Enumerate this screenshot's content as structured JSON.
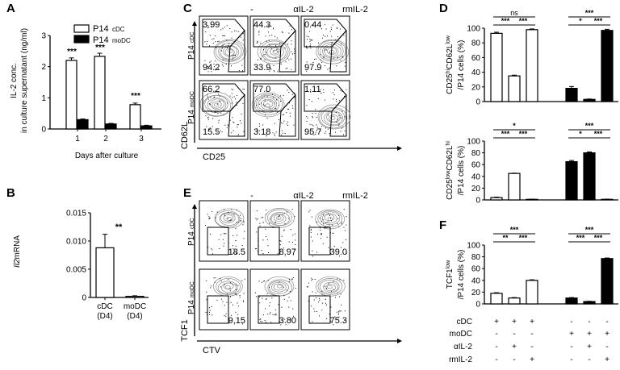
{
  "panel_letters": {
    "A": "A",
    "B": "B",
    "C": "C",
    "D": "D",
    "E": "E",
    "F": "F"
  },
  "chart_data": [
    {
      "type": "bar",
      "panel": "A",
      "ylabel_line1": "IL-2 conc.",
      "ylabel_line2": "in culture supernatant (ng/ml)",
      "xlabel": "Days after culture",
      "categories": [
        "1",
        "2",
        "3"
      ],
      "yticks": [
        "0",
        "1",
        "2",
        "3"
      ],
      "ylim": [
        0,
        3
      ],
      "legend": [
        {
          "name": "P14",
          "sub": "cDC"
        },
        {
          "name": "P14",
          "sub": "moDC"
        }
      ],
      "series": [
        {
          "name": "P14 cDC",
          "values": [
            2.2,
            2.33,
            0.78
          ],
          "errors": [
            0.08,
            0.1,
            0.05
          ],
          "fill": "#ffffff"
        },
        {
          "name": "P14 moDC",
          "values": [
            0.3,
            0.16,
            0.1
          ],
          "errors": [
            0.02,
            0.02,
            0.02
          ],
          "fill": "#000000"
        }
      ],
      "annotations": [
        "***",
        "***",
        "***"
      ]
    },
    {
      "type": "bar",
      "panel": "B",
      "ylabel_italic": "Il2",
      "ylabel_rest": "mRNA",
      "categories": [
        {
          "l1": "cDC",
          "l2": "(D4)"
        },
        {
          "l1": "moDC",
          "l2": "(D4)"
        }
      ],
      "yticks": [
        "0",
        "0.005",
        "0.010",
        "0.015"
      ],
      "ylim": [
        0,
        0.015
      ],
      "values": [
        0.0088,
        0.0002
      ],
      "errors": [
        0.0024,
        0.0001
      ],
      "annotation": "**"
    },
    {
      "type": "bar",
      "panel": "D-top",
      "ylabel_a": "CD25",
      "ylabel_a_sup": "hi",
      "ylabel_b": "CD62L",
      "ylabel_b_sup": "low",
      "ylabel_line2": "/P14 cells (%)",
      "yticks": [
        "0",
        "20",
        "40",
        "60",
        "80",
        "100"
      ],
      "ylim": [
        0,
        100
      ],
      "values": [
        93,
        35,
        98,
        18,
        3,
        97
      ],
      "errors": [
        1.5,
        1,
        1,
        2.5,
        0.5,
        1.5
      ],
      "fills": [
        "#ffffff",
        "#ffffff",
        "#ffffff",
        "#000000",
        "#000000",
        "#000000"
      ],
      "sig": [
        {
          "a": 0,
          "b": 2,
          "label": "ns",
          "level": 2
        },
        {
          "a": 0,
          "b": 1,
          "label": "***",
          "level": 1
        },
        {
          "a": 1,
          "b": 2,
          "label": "***",
          "level": 1
        },
        {
          "a": 3,
          "b": 5,
          "label": "***",
          "level": 2
        },
        {
          "a": 3,
          "b": 4,
          "label": "*",
          "level": 1
        },
        {
          "a": 4,
          "b": 5,
          "label": "***",
          "level": 1
        }
      ]
    },
    {
      "type": "bar",
      "panel": "D-bottom",
      "ylabel_a": "CD25",
      "ylabel_a_sup": "low",
      "ylabel_b": "CD62L",
      "ylabel_b_sup": "hi",
      "ylabel_line2": "/P14 cells (%)",
      "yticks": [
        "0",
        "20",
        "40",
        "60",
        "80",
        "100"
      ],
      "ylim": [
        0,
        100
      ],
      "values": [
        4,
        45,
        1,
        65,
        80,
        1
      ],
      "errors": [
        0.8,
        0.5,
        0.3,
        2,
        1.5,
        0.3
      ],
      "fills": [
        "#ffffff",
        "#ffffff",
        "#ffffff",
        "#000000",
        "#000000",
        "#000000"
      ],
      "sig": [
        {
          "a": 0,
          "b": 2,
          "label": "*",
          "level": 2
        },
        {
          "a": 0,
          "b": 1,
          "label": "***",
          "level": 1
        },
        {
          "a": 1,
          "b": 2,
          "label": "***",
          "level": 1
        },
        {
          "a": 3,
          "b": 5,
          "label": "***",
          "level": 2
        },
        {
          "a": 3,
          "b": 4,
          "label": "*",
          "level": 1
        },
        {
          "a": 4,
          "b": 5,
          "label": "***",
          "level": 1
        }
      ]
    },
    {
      "type": "bar",
      "panel": "F",
      "ylabel_a": "TCF1",
      "ylabel_a_sup": "low",
      "ylabel_line2": "/P14 cells (%)",
      "yticks": [
        "0",
        "20",
        "40",
        "60",
        "80",
        "100"
      ],
      "ylim": [
        0,
        100
      ],
      "values": [
        18,
        10,
        40,
        10,
        4,
        77
      ],
      "errors": [
        1,
        0.8,
        1,
        0.8,
        0.5,
        1
      ],
      "fills": [
        "#ffffff",
        "#ffffff",
        "#ffffff",
        "#000000",
        "#000000",
        "#000000"
      ],
      "sig": [
        {
          "a": 0,
          "b": 2,
          "label": "***",
          "level": 2
        },
        {
          "a": 0,
          "b": 1,
          "label": "**",
          "level": 1
        },
        {
          "a": 1,
          "b": 2,
          "label": "***",
          "level": 1
        },
        {
          "a": 3,
          "b": 5,
          "label": "***",
          "level": 2
        },
        {
          "a": 3,
          "b": 4,
          "label": "***",
          "level": 1
        },
        {
          "a": 4,
          "b": 5,
          "label": "***",
          "level": 1
        }
      ],
      "table_rows": [
        {
          "label": "cDC",
          "signs": [
            "+",
            "+",
            "+",
            "-",
            "-",
            "-"
          ]
        },
        {
          "label": "moDC",
          "signs": [
            "-",
            "-",
            "-",
            "+",
            "+",
            "+"
          ]
        },
        {
          "label": "αIL-2",
          "signs": [
            "-",
            "+",
            "-",
            "-",
            "+",
            "-"
          ]
        },
        {
          "label": "rmIL-2",
          "signs": [
            "-",
            "-",
            "+",
            "-",
            "-",
            "+"
          ]
        }
      ]
    }
  ],
  "flow_C": {
    "col_headers": [
      "-",
      "αIL-2",
      "rmIL-2"
    ],
    "row_labels": [
      {
        "name": "P14",
        "sub": "cDC"
      },
      {
        "name": "P14",
        "sub": "moDC"
      }
    ],
    "y_axis_label": "CD62L",
    "x_axis_label": "CD25",
    "top_values": [
      [
        "3.99",
        "44.3",
        "0.44"
      ],
      [
        "66.2",
        "77.0",
        "1.11"
      ]
    ],
    "bottom_values": [
      [
        "94.2",
        "33.9",
        "97.9"
      ],
      [
        "15.5",
        "3.18",
        "95.7"
      ]
    ]
  },
  "flow_E": {
    "col_headers": [
      "-",
      "αIL-2",
      "rmIL-2"
    ],
    "row_labels": [
      {
        "name": "P14",
        "sub": "cDC"
      },
      {
        "name": "P14",
        "sub": "moDC"
      }
    ],
    "y_axis_label": "TCF1",
    "x_axis_label": "CTV",
    "values": [
      [
        "18.5",
        "8.97",
        "39.0"
      ],
      [
        "9.15",
        "3.80",
        "75.3"
      ]
    ]
  }
}
